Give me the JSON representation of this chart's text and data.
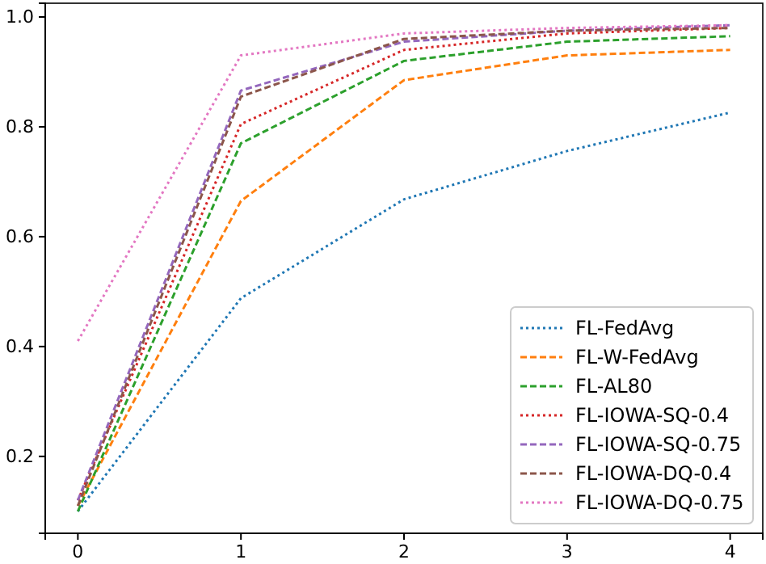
{
  "chart_data": {
    "type": "line",
    "x": [
      0,
      1,
      2,
      3,
      4
    ],
    "xlim": [
      -0.2,
      4.2
    ],
    "ylim": [
      0.06,
      1.025
    ],
    "xticks": [
      0,
      1,
      2,
      3,
      4
    ],
    "yticks": [
      {
        "value": 0.2,
        "label": "0.2"
      },
      {
        "value": 0.4,
        "label": "0.4"
      },
      {
        "value": 0.6,
        "label": "0.6"
      },
      {
        "value": 0.8,
        "label": "0.8"
      },
      {
        "value": 1.0,
        "label": "1.0"
      }
    ],
    "grid": false,
    "legend": "bottom right",
    "series": [
      {
        "name": "FL-FedAvg",
        "color": "#1f77b4",
        "line_style": "dotted",
        "values": [
          0.1,
          0.488,
          0.668,
          0.756,
          0.826
        ]
      },
      {
        "name": "FL-W-FedAvg",
        "color": "#ff7f0e",
        "line_style": "dashed",
        "values": [
          0.11,
          0.665,
          0.885,
          0.93,
          0.94
        ]
      },
      {
        "name": "FL-AL80",
        "color": "#2ca02c",
        "line_style": "dashed",
        "values": [
          0.1,
          0.77,
          0.92,
          0.955,
          0.965
        ]
      },
      {
        "name": "FL-IOWA-SQ-0.4",
        "color": "#d62728",
        "line_style": "dotted",
        "values": [
          0.12,
          0.805,
          0.94,
          0.97,
          0.98
        ]
      },
      {
        "name": "FL-IOWA-SQ-0.75",
        "color": "#9467bd",
        "line_style": "dashed",
        "values": [
          0.12,
          0.866,
          0.955,
          0.975,
          0.985
        ]
      },
      {
        "name": "FL-IOWA-DQ-0.4",
        "color": "#8c564b",
        "line_style": "dashed",
        "values": [
          0.11,
          0.855,
          0.96,
          0.975,
          0.98
        ]
      },
      {
        "name": "FL-IOWA-DQ-0.75",
        "color": "#e377c2",
        "line_style": "dotted",
        "values": [
          0.41,
          0.93,
          0.97,
          0.98,
          0.985
        ]
      }
    ]
  }
}
